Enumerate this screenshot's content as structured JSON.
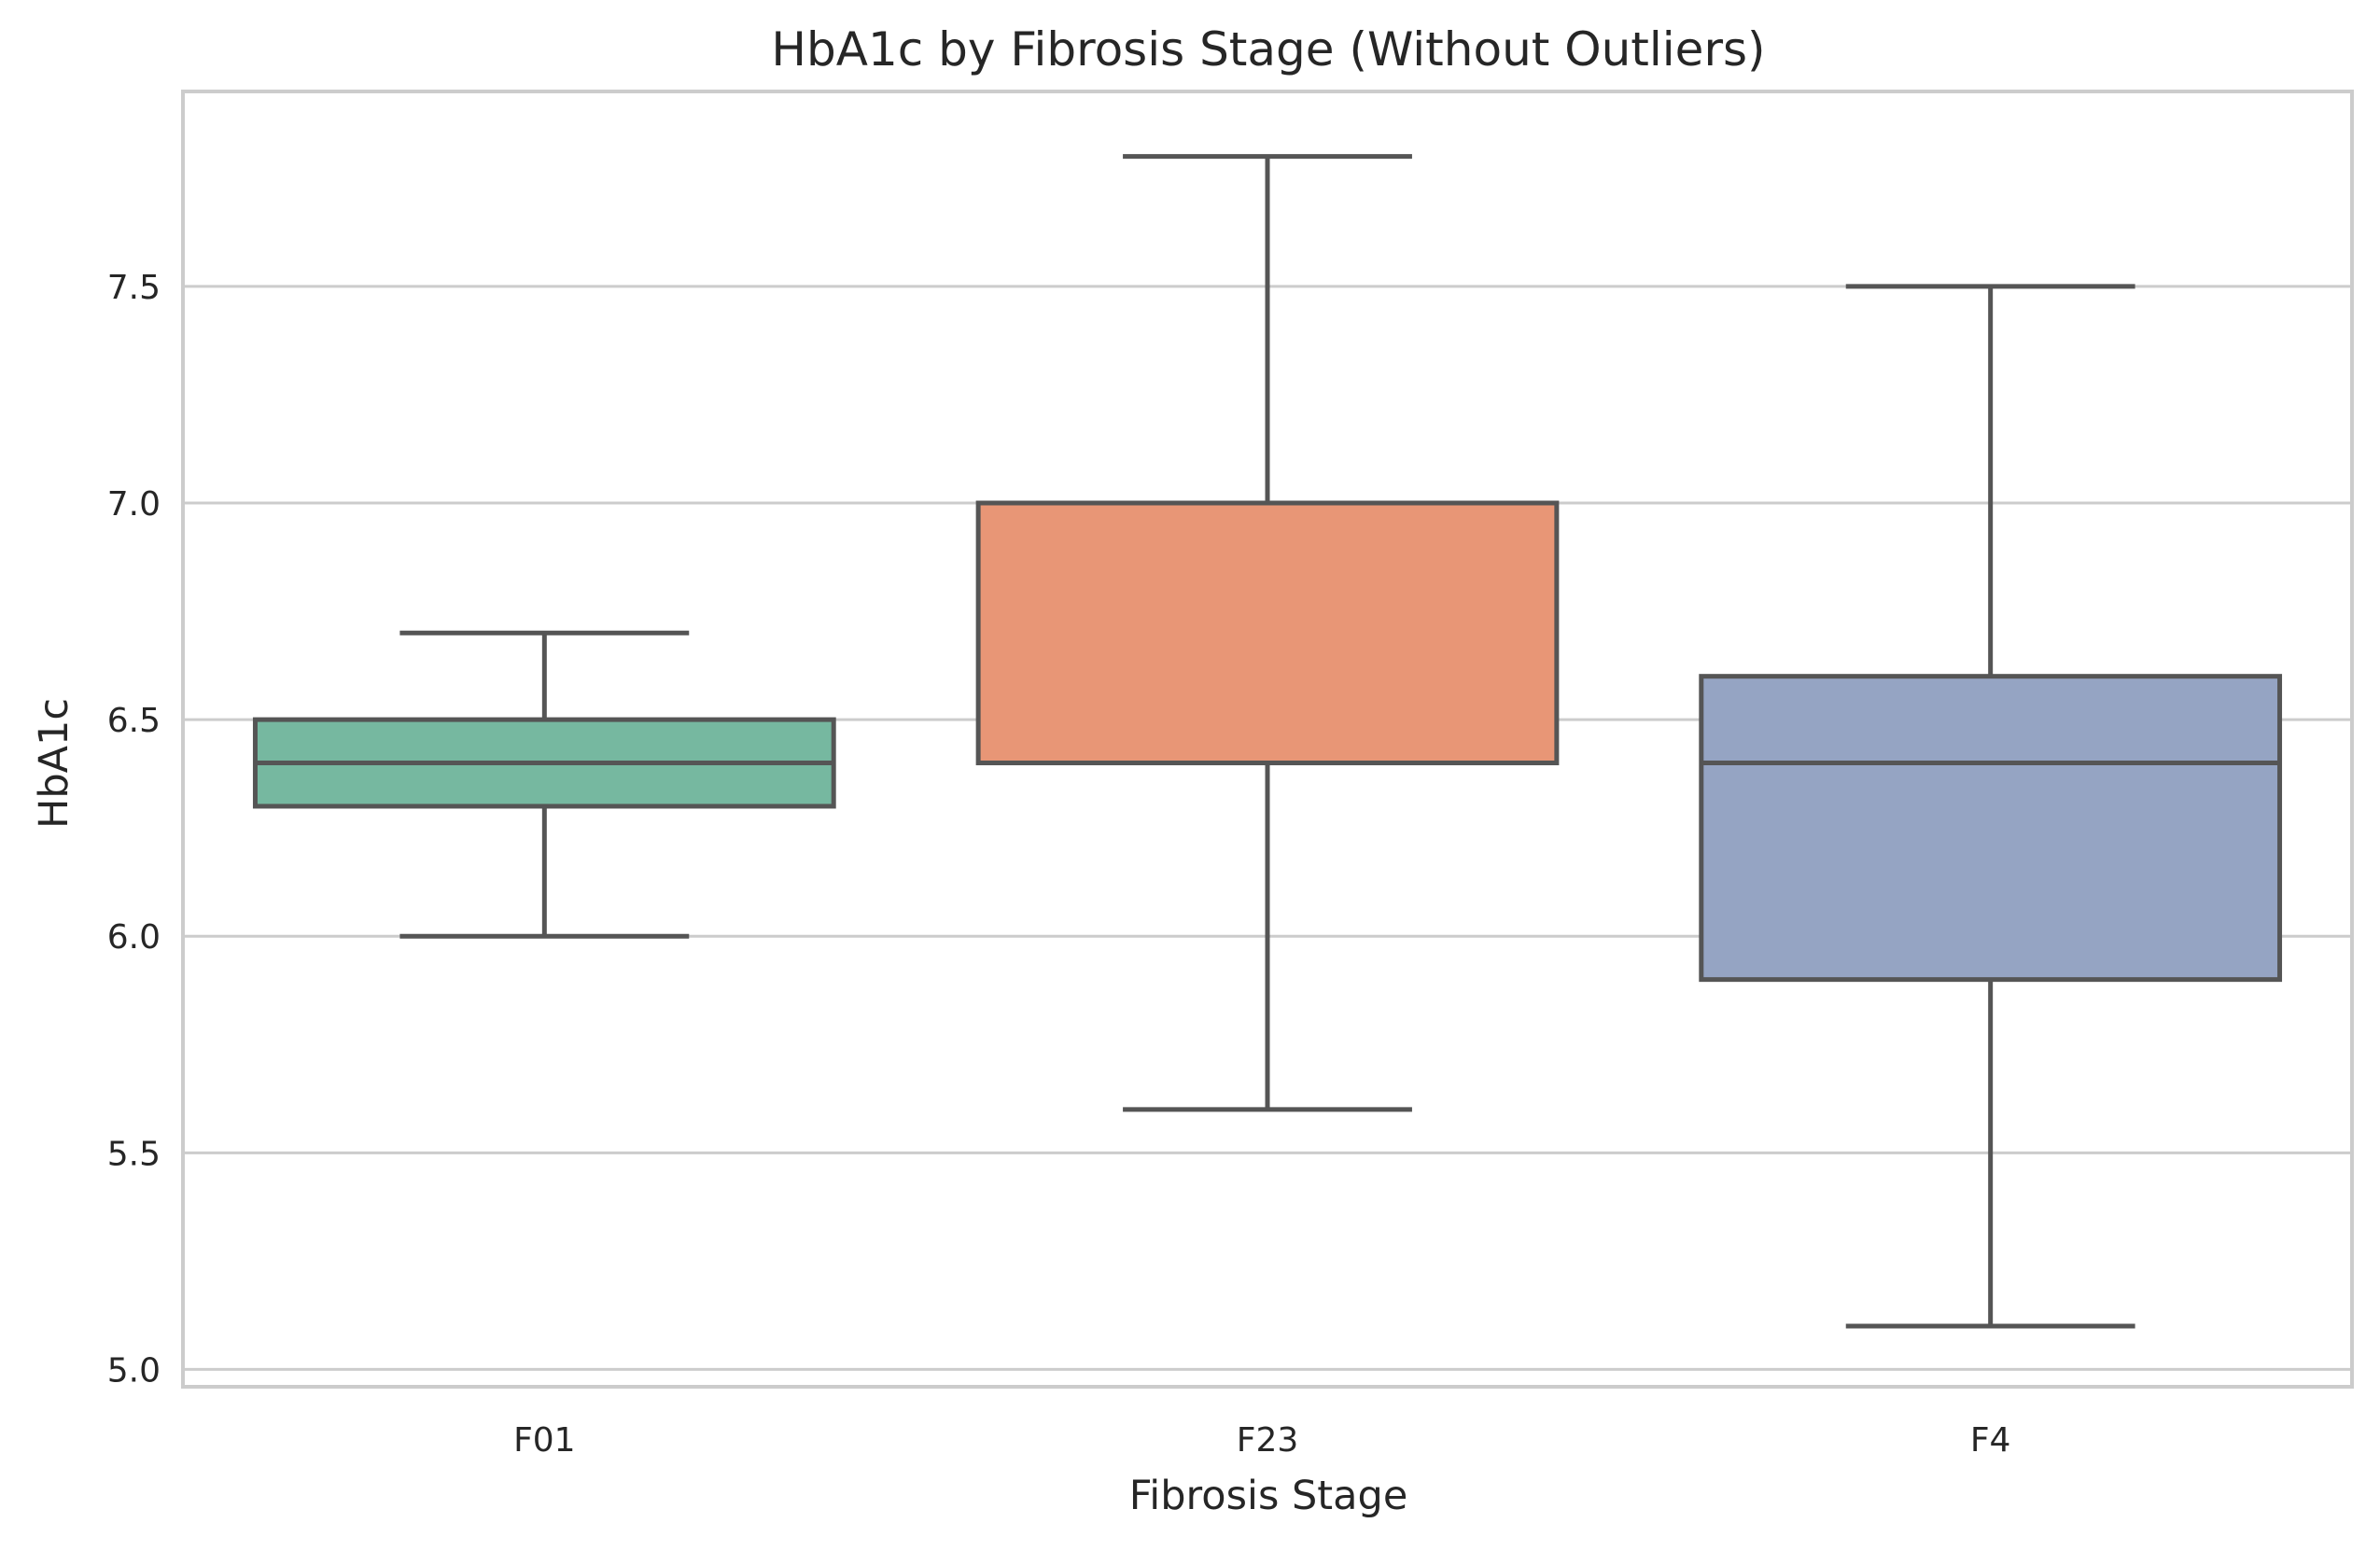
{
  "chart_data": {
    "type": "box",
    "title": "HbA1c by Fibrosis Stage (Without Outliers)",
    "xlabel": "Fibrosis Stage",
    "ylabel": "HbA1c",
    "categories": [
      "F01",
      "F23",
      "F4"
    ],
    "boxes": [
      {
        "category": "F01",
        "whisker_low": 6.0,
        "q1": 6.3,
        "median": 6.4,
        "q3": 6.5,
        "whisker_high": 6.7,
        "color": "#76b8a0"
      },
      {
        "category": "F23",
        "whisker_low": 5.6,
        "q1": 6.4,
        "median": 6.4,
        "q3": 7.0,
        "whisker_high": 7.8,
        "color": "#e89676"
      },
      {
        "category": "F4",
        "whisker_low": 5.1,
        "q1": 5.9,
        "median": 6.4,
        "q3": 6.6,
        "whisker_high": 7.5,
        "color": "#95a4c3"
      }
    ],
    "yticks": [
      5.0,
      5.5,
      6.0,
      6.5,
      7.0,
      7.5
    ],
    "ytick_labels": [
      "5.0",
      "5.5",
      "6.0",
      "6.5",
      "7.0",
      "7.5"
    ],
    "ylim": [
      4.96,
      7.95
    ],
    "grid": true,
    "legend": "none",
    "colors": {
      "line": "#555555",
      "grid": "#cccccc",
      "frame": "#cccccc",
      "text": "#262626"
    }
  }
}
